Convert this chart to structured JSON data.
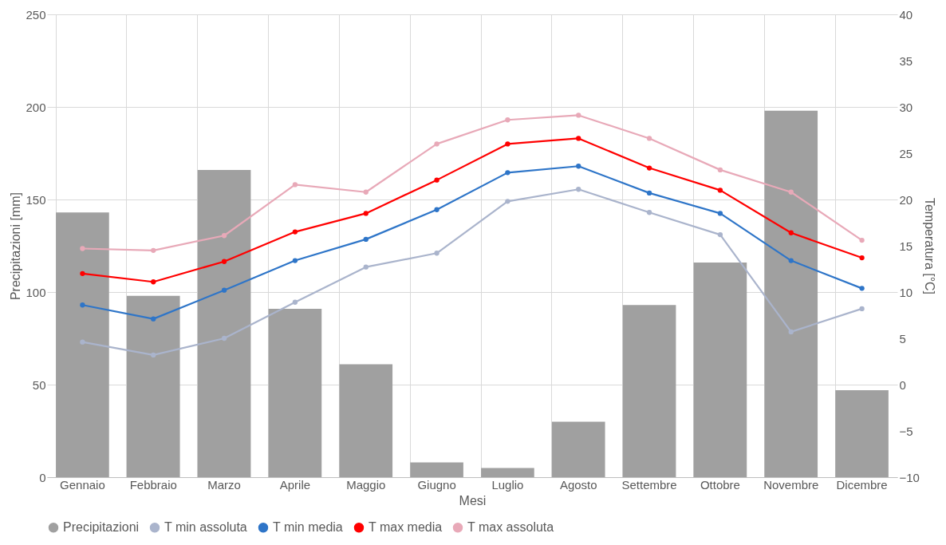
{
  "chart_data": {
    "type": "bar",
    "xlabel": "Mesi",
    "ylabel": "Precipitazioni [mm]",
    "y2label": "Temperatura [°C]",
    "categories": [
      "Gennaio",
      "Febbraio",
      "Marzo",
      "Aprile",
      "Maggio",
      "Giugno",
      "Luglio",
      "Agosto",
      "Settembre",
      "Ottobre",
      "Novembre",
      "Dicembre"
    ],
    "series": [
      {
        "name": "Precipitazioni",
        "color": "#a0a0a0",
        "values": [
          143,
          98,
          166,
          91,
          61,
          8,
          5,
          30,
          93,
          116,
          198,
          47
        ]
      },
      {
        "name": "T min assoluta",
        "type": "line",
        "axis": "y2",
        "color": "#aab4cc",
        "values": [
          4.6,
          3.2,
          5.0,
          8.9,
          12.7,
          14.2,
          19.8,
          21.1,
          18.6,
          16.2,
          5.7,
          8.2
        ]
      },
      {
        "name": "T min media",
        "type": "line",
        "axis": "y2",
        "color": "#2e75c8",
        "values": [
          8.6,
          7.1,
          10.2,
          13.4,
          15.7,
          18.9,
          22.9,
          23.6,
          20.7,
          18.5,
          13.4,
          10.4
        ]
      },
      {
        "name": "T max media",
        "type": "line",
        "axis": "y2",
        "color": "#ff0000",
        "values": [
          12.0,
          11.1,
          13.3,
          16.5,
          18.5,
          22.1,
          26.0,
          26.6,
          23.4,
          21.0,
          16.4,
          13.7
        ]
      },
      {
        "name": "T max assoluta",
        "type": "line",
        "axis": "y2",
        "color": "#e8a9b8",
        "values": [
          14.7,
          14.5,
          16.1,
          21.6,
          20.8,
          26.0,
          28.6,
          29.1,
          26.6,
          23.2,
          20.8,
          15.6
        ]
      }
    ],
    "ylim": [
      0,
      250
    ],
    "yticks": [
      0,
      50,
      100,
      150,
      200,
      250
    ],
    "y2lim": [
      -10,
      40
    ],
    "y2ticks": [
      -10,
      -5,
      0,
      5,
      10,
      15,
      20,
      25,
      30,
      35,
      40
    ],
    "grid": true,
    "legend": "bottom",
    "marker": "circle",
    "line_style": "solid"
  }
}
